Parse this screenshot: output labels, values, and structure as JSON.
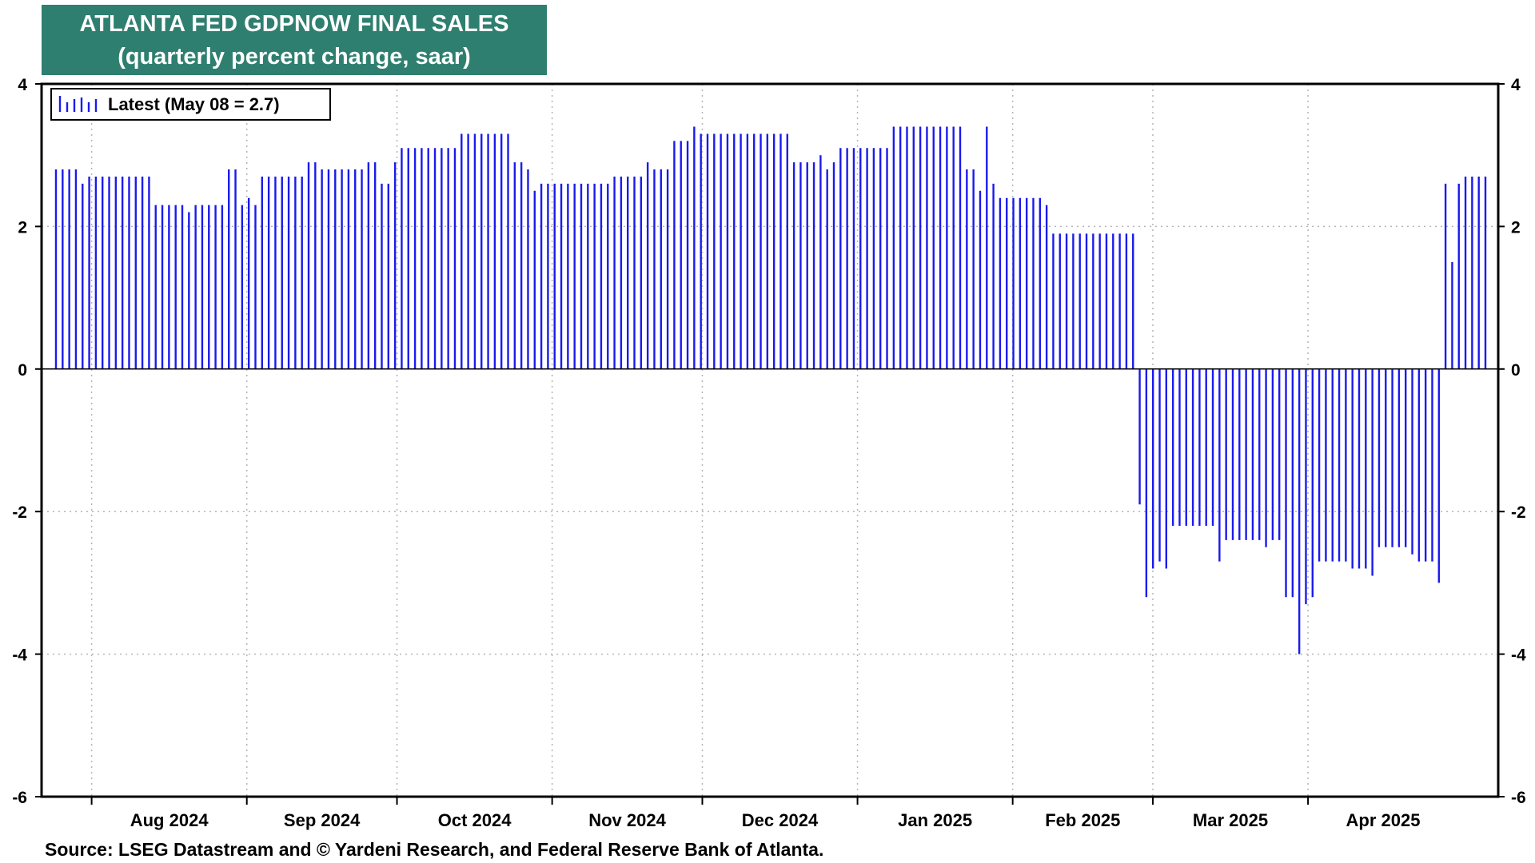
{
  "header": {
    "title_line1": "ATLANTA FED GDPNOW FINAL SALES",
    "title_line2": "(quarterly percent change, saar)"
  },
  "footer": {
    "source": "Source: LSEG Datastream and © Yardeni Research, and Federal Reserve Bank of Atlanta."
  },
  "chart_data": {
    "type": "bar",
    "title": "ATLANTA FED GDPNOW FINAL SALES",
    "subtitle": "(quarterly percent change, saar)",
    "legend": {
      "label": "Latest (May 08 = 2.7)",
      "placement": "top-left"
    },
    "series_color": "#1a1aee",
    "ylim": [
      -6,
      4
    ],
    "y_ticks": [
      4,
      2,
      0,
      -2,
      -4,
      -6
    ],
    "grid": true,
    "x_range": [
      "2024-07-22",
      "2025-05-09"
    ],
    "months": [
      {
        "label": "Aug 2024",
        "start": "2024-08-01"
      },
      {
        "label": "Sep 2024",
        "start": "2024-09-01"
      },
      {
        "label": "Oct 2024",
        "start": "2024-10-01"
      },
      {
        "label": "Nov 2024",
        "start": "2024-11-01"
      },
      {
        "label": "Dec 2024",
        "start": "2024-12-01"
      },
      {
        "label": "Jan 2025",
        "start": "2025-01-01"
      },
      {
        "label": "Feb 2025",
        "start": "2025-02-01"
      },
      {
        "label": "Mar 2025",
        "start": "2025-03-01"
      },
      {
        "label": "Apr 2025",
        "start": "2025-04-01"
      }
    ],
    "values": [
      2.8,
      2.8,
      2.8,
      2.8,
      2.6,
      2.7,
      2.7,
      2.7,
      2.7,
      2.7,
      2.7,
      2.7,
      2.7,
      2.7,
      2.7,
      2.3,
      2.3,
      2.3,
      2.3,
      2.3,
      2.2,
      2.3,
      2.3,
      2.3,
      2.3,
      2.3,
      2.8,
      2.8,
      2.3,
      2.4,
      2.3,
      2.7,
      2.7,
      2.7,
      2.7,
      2.7,
      2.7,
      2.7,
      2.9,
      2.9,
      2.8,
      2.8,
      2.8,
      2.8,
      2.8,
      2.8,
      2.8,
      2.9,
      2.9,
      2.6,
      2.6,
      2.9,
      3.1,
      3.1,
      3.1,
      3.1,
      3.1,
      3.1,
      3.1,
      3.1,
      3.1,
      3.3,
      3.3,
      3.3,
      3.3,
      3.3,
      3.3,
      3.3,
      3.3,
      2.9,
      2.9,
      2.8,
      2.5,
      2.6,
      2.6,
      2.6,
      2.6,
      2.6,
      2.6,
      2.6,
      2.6,
      2.6,
      2.6,
      2.6,
      2.7,
      2.7,
      2.7,
      2.7,
      2.7,
      2.9,
      2.8,
      2.8,
      2.8,
      3.2,
      3.2,
      3.2,
      3.4,
      3.3,
      3.3,
      3.3,
      3.3,
      3.3,
      3.3,
      3.3,
      3.3,
      3.3,
      3.3,
      3.3,
      3.3,
      3.3,
      3.3,
      2.9,
      2.9,
      2.9,
      2.9,
      3.0,
      2.8,
      2.9,
      3.1,
      3.1,
      3.1,
      3.1,
      3.1,
      3.1,
      3.1,
      3.1,
      3.4,
      3.4,
      3.4,
      3.4,
      3.4,
      3.4,
      3.4,
      3.4,
      3.4,
      3.4,
      3.4,
      2.8,
      2.8,
      2.5,
      3.4,
      2.6,
      2.4,
      2.4,
      2.4,
      2.4,
      2.4,
      2.4,
      2.4,
      2.3,
      1.9,
      1.9,
      1.9,
      1.9,
      1.9,
      1.9,
      1.9,
      1.9,
      1.9,
      1.9,
      1.9,
      1.9,
      1.9,
      -1.9,
      -3.2,
      -2.8,
      -2.7,
      -2.8,
      -2.2,
      -2.2,
      -2.2,
      -2.2,
      -2.2,
      -2.2,
      -2.2,
      -2.7,
      -2.4,
      -2.4,
      -2.4,
      -2.4,
      -2.4,
      -2.4,
      -2.5,
      -2.4,
      -2.4,
      -3.2,
      -3.2,
      -4.0,
      -3.3,
      -3.2,
      -2.7,
      -2.7,
      -2.7,
      -2.7,
      -2.7,
      -2.8,
      -2.8,
      -2.8,
      -2.9,
      -2.5,
      -2.5,
      -2.5,
      -2.5,
      -2.5,
      -2.6,
      -2.7,
      -2.7,
      -2.7,
      -3.0,
      2.6,
      1.5,
      2.6,
      2.7,
      2.7,
      2.7,
      2.7
    ]
  }
}
